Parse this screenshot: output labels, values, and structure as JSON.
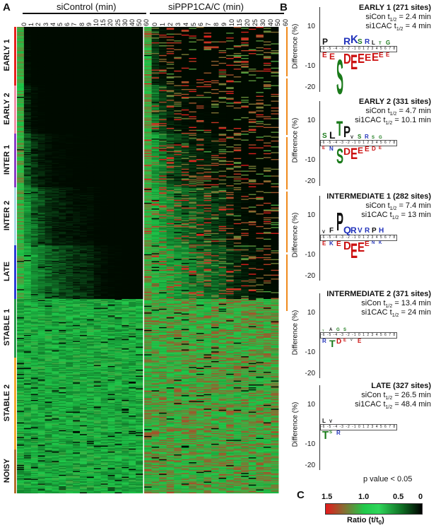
{
  "panels": {
    "a": "A",
    "b": "B",
    "c": "C"
  },
  "heatmap": {
    "group_left_label": "siControl (min)",
    "group_right_label": "siPPP1CA/C (min)",
    "time_ticks": [
      "0",
      "1",
      "2",
      "3",
      "4",
      "5",
      "6",
      "7",
      "8",
      "9",
      "10",
      "15",
      "20",
      "25",
      "30",
      "40",
      "50",
      "60"
    ],
    "clusters": [
      {
        "name": "EARLY 1",
        "color": "#e8211d",
        "rows": 60
      },
      {
        "name": "EARLY 2",
        "color": "#f290a8",
        "rows": 50
      },
      {
        "name": "INTER 1",
        "color": "#8b3fc7",
        "rows": 55
      },
      {
        "name": "INTER 2",
        "color": "#a7dbe3",
        "rows": 60
      },
      {
        "name": "LATE",
        "color": "#2c3fd6",
        "rows": 55
      },
      {
        "name": "STABLE 1",
        "color": "#2a9b4d",
        "rows": 60
      },
      {
        "name": "STABLE 2",
        "color": "#f1a92e",
        "rows": 95
      },
      {
        "name": "NOISY",
        "color": "#b5702c",
        "rows": 45
      }
    ]
  },
  "logos": [
    {
      "title": "EARLY 1 (271 sites)",
      "sicon": "siCon t",
      "sicon_sub": "1/2",
      "sicon_val": " = 2.4 min",
      "si1": "si1CAC t",
      "si1_sub": "1/2",
      "si1_val": " = 4 min"
    },
    {
      "title": "EARLY 2 (331 sites)",
      "sicon": "siCon t",
      "sicon_sub": "1/2",
      "sicon_val": " = 4.7 min",
      "si1": "si1CAC t",
      "si1_sub": "1/2",
      "si1_val": " = 10.1 min"
    },
    {
      "title": "INTERMEDIATE 1 (282 sites)",
      "sicon": "siCon t",
      "sicon_sub": "1/2",
      "sicon_val": " = 7.4 min",
      "si1": "si1CAC t",
      "si1_sub": "1/2",
      "si1_val": " = 13 min"
    },
    {
      "title": "INTERMEDIATE 2 (371 sites)",
      "sicon": "siCon t",
      "sicon_sub": "1/2",
      "sicon_val": " = 13.4 min",
      "si1": "si1CAC t",
      "si1_sub": "1/2",
      "si1_val": " = 24 min"
    },
    {
      "title": "LATE (327 sites)",
      "sicon": "siCon t",
      "sicon_sub": "1/2",
      "sicon_val": " = 26.5 min",
      "si1": "si1CAC t",
      "si1_sub": "1/2",
      "si1_val": " = 48.4 min"
    }
  ],
  "logo_axis": {
    "ylabel": "Difference (%)",
    "yticks": [
      "10",
      "-10",
      "-20"
    ],
    "positions": [
      "-6",
      "-5",
      "-4",
      "-3",
      "-2",
      "-1",
      "0",
      "1",
      "2",
      "3",
      "4",
      "5",
      "6",
      "7",
      "8",
      "9",
      "10"
    ]
  },
  "pvalue": "p  value < 0.05",
  "colorbar": {
    "ticks": [
      "1.5",
      "1.0",
      "0.5",
      "0"
    ],
    "label": "Ratio (t/t",
    "label_sub": "0",
    "label_end": ")"
  }
}
